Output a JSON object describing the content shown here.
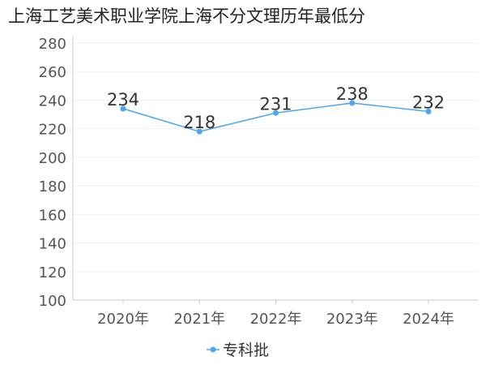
{
  "chart_data": {
    "type": "line",
    "title": "上海工艺美术职业学院上海不分文理历年最低分",
    "categories": [
      "2020年",
      "2021年",
      "2022年",
      "2023年",
      "2024年"
    ],
    "series": [
      {
        "name": "专科批",
        "values": [
          234,
          218,
          231,
          238,
          232
        ]
      }
    ],
    "ylim": [
      100,
      280
    ],
    "yticks": [
      100,
      120,
      140,
      160,
      180,
      200,
      220,
      240,
      260,
      280
    ],
    "grid": true,
    "legend": "bottom-center",
    "colors": {
      "series": "#4da6f0"
    }
  }
}
